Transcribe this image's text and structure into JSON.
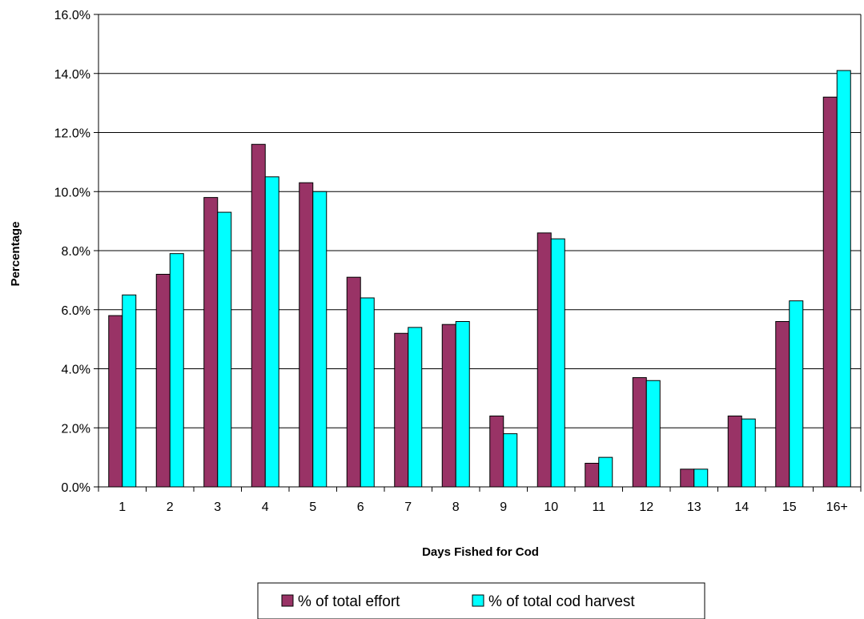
{
  "chart_data": {
    "type": "bar",
    "xlabel": "Days Fished for Cod",
    "ylabel": "Percentage",
    "ylim": [
      0,
      16
    ],
    "yticks": [
      "0.0%",
      "2.0%",
      "4.0%",
      "6.0%",
      "8.0%",
      "10.0%",
      "12.0%",
      "14.0%",
      "16.0%"
    ],
    "categories": [
      "1",
      "2",
      "3",
      "4",
      "5",
      "6",
      "7",
      "8",
      "9",
      "10",
      "11",
      "12",
      "13",
      "14",
      "15",
      "16+"
    ],
    "series": [
      {
        "name": "% of total effort",
        "color": "#993366",
        "values": [
          5.8,
          7.2,
          9.8,
          11.6,
          10.3,
          7.1,
          5.2,
          5.5,
          2.4,
          8.6,
          0.8,
          3.7,
          0.6,
          2.4,
          5.6,
          13.2
        ]
      },
      {
        "name": "% of total cod harvest",
        "color": "#00FFFF",
        "values": [
          6.5,
          7.9,
          9.3,
          10.5,
          10.0,
          6.4,
          5.4,
          5.6,
          1.8,
          8.4,
          1.0,
          3.6,
          0.6,
          2.3,
          6.3,
          14.1
        ]
      }
    ],
    "grid": true,
    "legend_position": "bottom"
  }
}
